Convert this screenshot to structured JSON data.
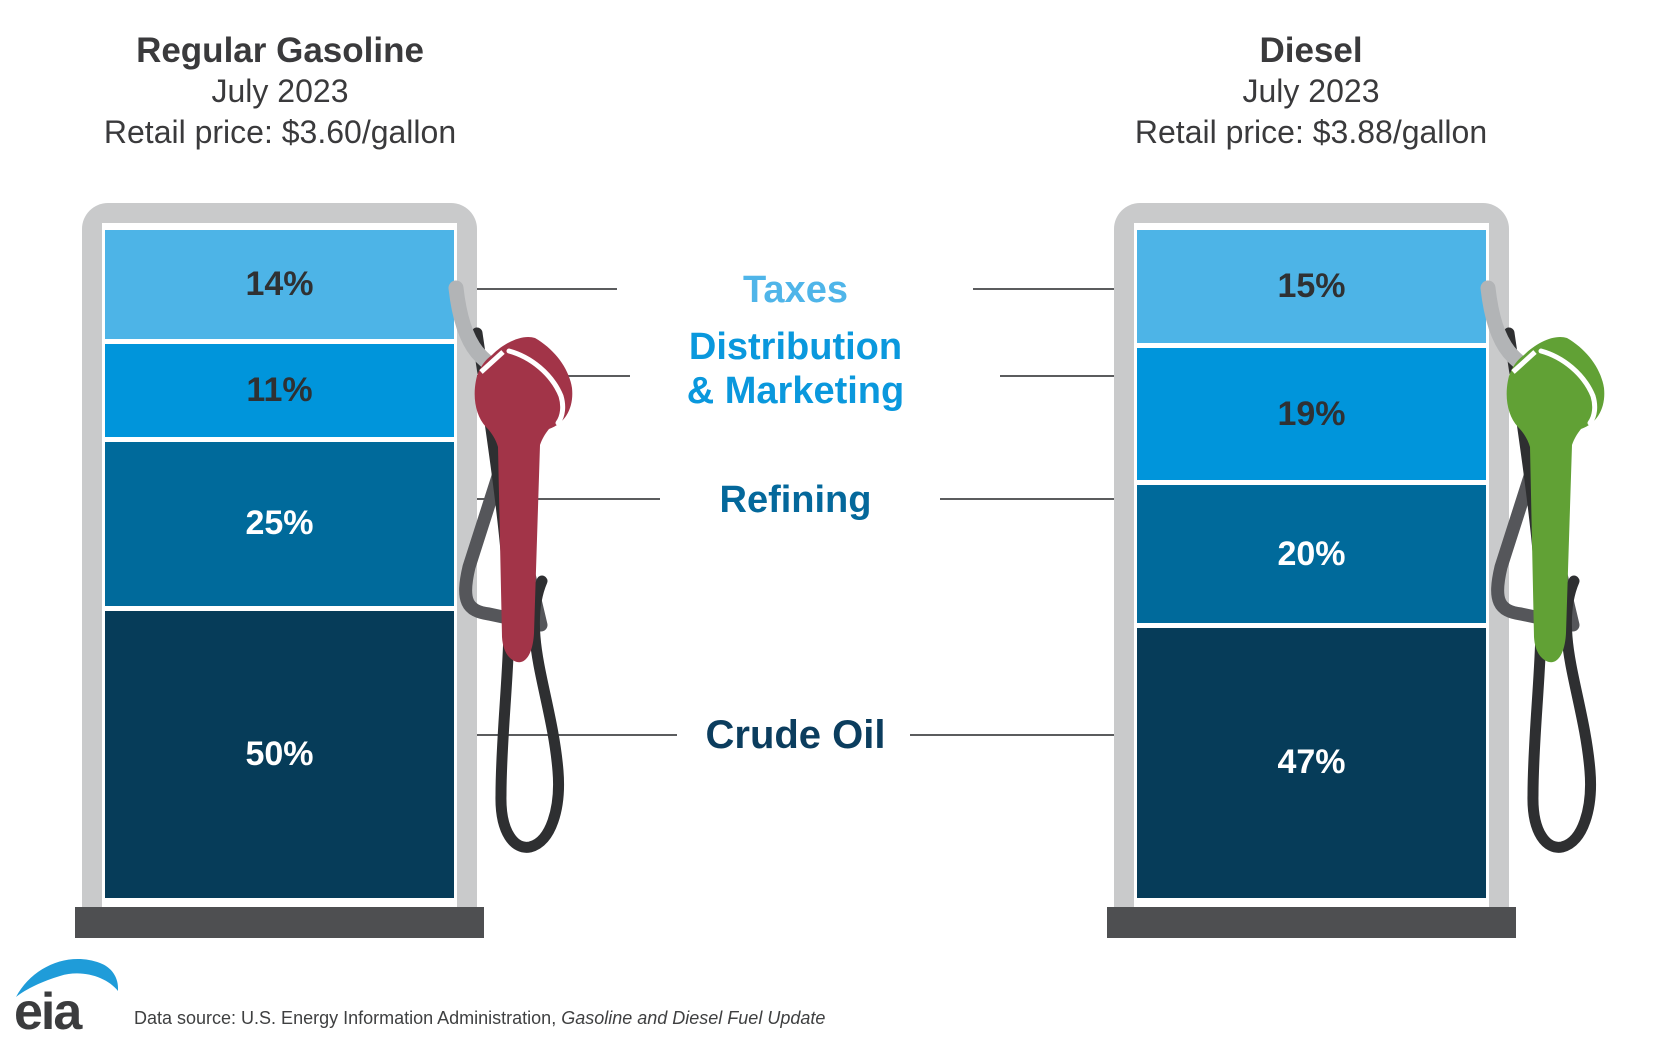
{
  "pumps": [
    {
      "title": "Regular Gasoline",
      "period": "July 2023",
      "price_line": "Retail price: $3.60/gallon",
      "nozzle_color": "#A23448",
      "segments": [
        {
          "category": "Taxes",
          "label": "14%",
          "value": 14,
          "color": "#4DB4E7",
          "label_color": "#2F3133"
        },
        {
          "category": "Distribution & Marketing",
          "label": "11%",
          "value": 11,
          "color": "#0095DB",
          "label_color": "#2F3133"
        },
        {
          "category": "Refining",
          "label": "25%",
          "value": 25,
          "color": "#006A9B",
          "label_color": "#FFFFFF"
        },
        {
          "category": "Crude Oil",
          "label": "50%",
          "value": 50,
          "color": "#063C59",
          "label_color": "#FFFFFF"
        }
      ]
    },
    {
      "title": "Diesel",
      "period": "July 2023",
      "price_line": "Retail price: $3.88/gallon",
      "nozzle_color": "#61A135",
      "segments": [
        {
          "category": "Taxes",
          "label": "15%",
          "value": 15,
          "color": "#4DB4E7",
          "label_color": "#2F3133"
        },
        {
          "category": "Distribution & Marketing",
          "label": "19%",
          "value": 19,
          "color": "#0095DB",
          "label_color": "#2F3133"
        },
        {
          "category": "Refining",
          "label": "20%",
          "value": 20,
          "color": "#006A9B",
          "label_color": "#FFFFFF"
        },
        {
          "category": "Crude Oil",
          "label": "47%",
          "value": 47,
          "color": "#063C59",
          "label_color": "#FFFFFF"
        }
      ]
    }
  ],
  "center_labels": [
    {
      "text": "Taxes",
      "color": "#4FB5E9"
    },
    {
      "text": "Distribution\n& Marketing",
      "color": "#0A98DD"
    },
    {
      "text": "Refining",
      "color": "#04689B"
    },
    {
      "text": "Crude Oil",
      "color": "#0B3D5E"
    }
  ],
  "footer": {
    "logo_text": "eia",
    "source_prefix": "Data source: U.S. Energy Information Administration, ",
    "source_publication": "Gasoline and Diesel Fuel Update"
  },
  "chart_data": {
    "type": "bar",
    "subtype": "stacked-100-percent-columns",
    "categories": [
      "Taxes",
      "Distribution & Marketing",
      "Refining",
      "Crude Oil"
    ],
    "series": [
      {
        "name": "Regular Gasoline",
        "period": "July 2023",
        "retail_price": "$3.60/gallon",
        "values": [
          14,
          11,
          25,
          50
        ]
      },
      {
        "name": "Diesel",
        "period": "July 2023",
        "retail_price": "$3.88/gallon",
        "values": [
          15,
          19,
          20,
          47
        ]
      }
    ],
    "unit": "%",
    "segment_colors": [
      "#4DB4E7",
      "#0095DB",
      "#006A9B",
      "#063C59"
    ],
    "legend_position": "center-between-columns",
    "source": "Data source: U.S. Energy Information Administration, Gasoline and Diesel Fuel Update"
  }
}
